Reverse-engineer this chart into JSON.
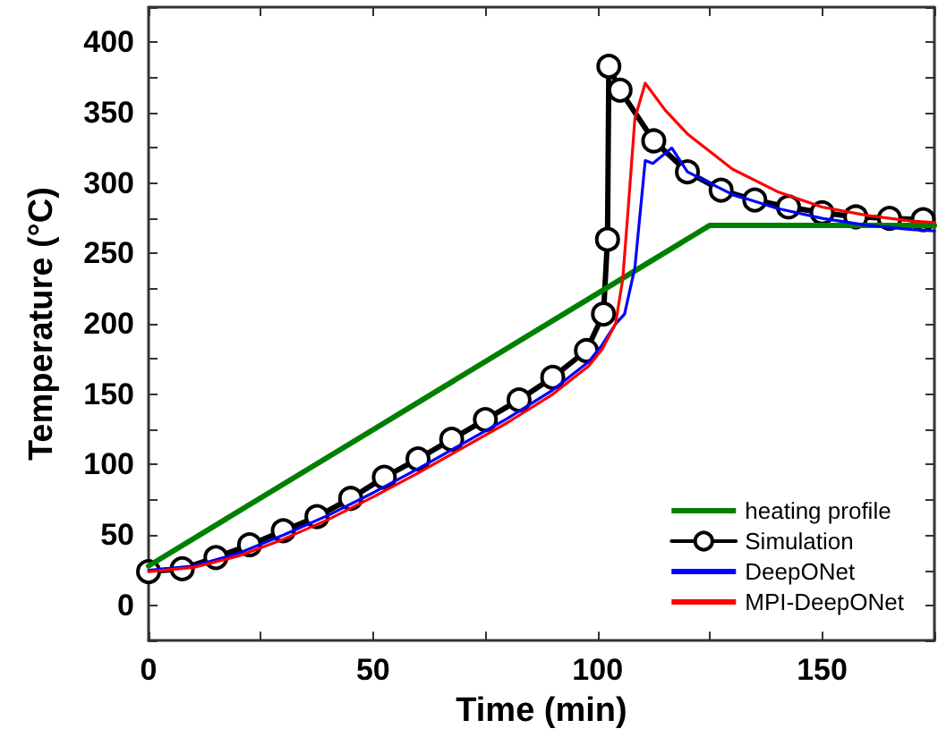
{
  "chart_data": {
    "type": "line",
    "xlabel": "Time (min)",
    "ylabel": "Temperature (°C)",
    "xlim": [
      0,
      175
    ],
    "ylim": [
      -25,
      425
    ],
    "xticks": [
      0,
      {
        "value": 25,
        "label": null
      },
      50,
      {
        "value": 75,
        "label": null
      },
      100,
      {
        "value": 125,
        "label": null
      },
      150,
      {
        "value": 175,
        "label": null
      }
    ],
    "yticks": [
      {
        "value": -25,
        "label": null
      },
      0,
      {
        "value": 25,
        "label": null
      },
      50,
      {
        "value": 75,
        "label": null
      },
      100,
      {
        "value": 125,
        "label": null
      },
      150,
      {
        "value": 175,
        "label": null
      },
      200,
      {
        "value": 225,
        "label": null
      },
      250,
      {
        "value": 275,
        "label": null
      },
      300,
      {
        "value": 325,
        "label": null
      },
      350,
      {
        "value": 375,
        "label": null
      },
      400,
      {
        "value": 425,
        "label": null
      }
    ],
    "grid": false,
    "legend": "bottom right",
    "marker": "none",
    "series": [
      {
        "name": "heating profile",
        "color": "#008000",
        "x": [
          0,
          125,
          175
        ],
        "values": [
          28,
          270,
          270
        ]
      },
      {
        "name": "Simulation",
        "color": "#000000",
        "marker": "circle",
        "x": [
          0,
          7.5,
          15,
          22.5,
          30,
          37.5,
          45,
          52.5,
          60,
          67.5,
          75,
          82.5,
          90,
          97.5,
          101.3,
          102.2,
          102.5,
          105,
          112.5,
          120,
          127.5,
          135,
          142.5,
          150,
          157.5,
          165,
          172.5
        ],
        "values": [
          24,
          26,
          34,
          43,
          53,
          63,
          76,
          91,
          104,
          118,
          132,
          146,
          162,
          181,
          207,
          260,
          383,
          366,
          330,
          308,
          295,
          288,
          283,
          279,
          276,
          275,
          274
        ]
      },
      {
        "name": "DeepONet",
        "color": "#0000ff",
        "x": [
          0,
          10,
          20,
          30,
          40,
          50,
          60,
          70,
          80,
          90,
          98,
          101,
          104,
          106,
          108.3,
          110.6,
          112.3,
          116.5,
          120,
          130,
          140,
          150,
          160,
          170,
          175
        ],
        "values": [
          25,
          28,
          37,
          50,
          64,
          80,
          97,
          115,
          133,
          153,
          173,
          185,
          200,
          207,
          240,
          316,
          314,
          325,
          308,
          292,
          282,
          275,
          270,
          267,
          266
        ]
      },
      {
        "name": "MPI-DeepONet",
        "color": "#ff0000",
        "x": [
          0,
          10,
          20,
          30,
          40,
          50,
          60,
          70,
          80,
          90,
          98,
          101,
          104,
          105.6,
          107,
          108.3,
          110.6,
          115,
          120,
          130,
          140,
          150,
          160,
          170,
          175
        ],
        "values": [
          24,
          27,
          35,
          47,
          61,
          77,
          94,
          112,
          130,
          150,
          170,
          182,
          200,
          232,
          290,
          346,
          371,
          352,
          335,
          310,
          294,
          283,
          277,
          273,
          272
        ]
      }
    ]
  }
}
